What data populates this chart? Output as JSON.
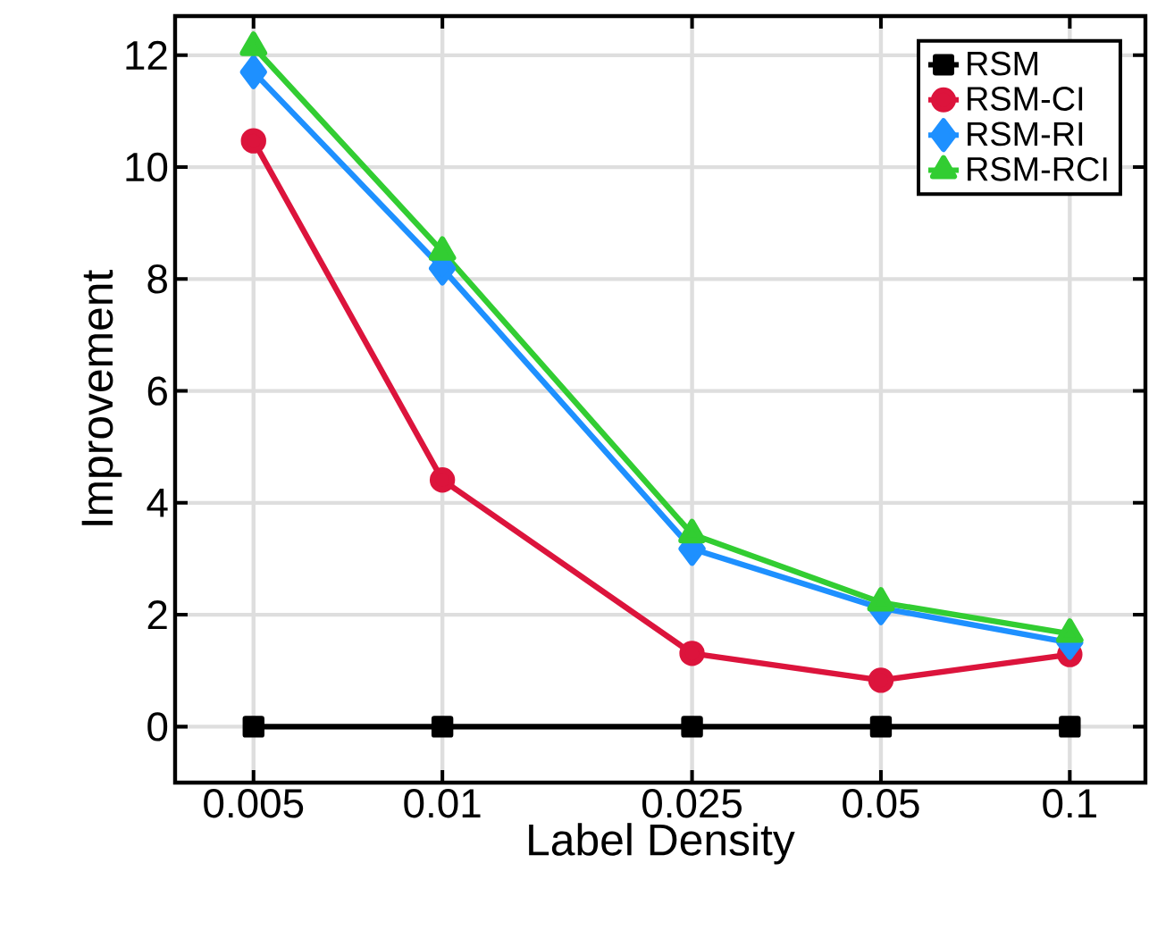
{
  "chart_data": {
    "type": "line",
    "xlabel": "Label Density",
    "ylabel": "Improvement",
    "x": [
      0.005,
      0.01,
      0.025,
      0.05,
      0.1
    ],
    "log": "x",
    "xlim": [
      0.00375,
      0.132
    ],
    "ylim": [
      -1,
      12.7
    ],
    "xticks": [
      0.005,
      0.01,
      0.025,
      0.05,
      0.1
    ],
    "yticks": [
      0,
      2,
      4,
      6,
      8,
      10,
      12
    ],
    "grid": true,
    "legend": "top right",
    "line_style": "solid",
    "series": [
      {
        "name": "RSM",
        "color": "#000000",
        "marker": "square",
        "values": [
          0,
          0,
          0,
          0,
          0
        ]
      },
      {
        "name": "RSM-CI",
        "color": "#dc143c",
        "marker": "circle",
        "values": [
          10.47,
          4.41,
          1.31,
          0.83,
          1.29
        ]
      },
      {
        "name": "RSM-RI",
        "color": "#1e90ff",
        "marker": "diamond",
        "values": [
          11.7,
          8.19,
          3.18,
          2.12,
          1.5
        ]
      },
      {
        "name": "RSM-RCI",
        "color": "#32cd32",
        "marker": "triangle",
        "values": [
          12.15,
          8.49,
          3.44,
          2.22,
          1.66
        ]
      }
    ]
  }
}
